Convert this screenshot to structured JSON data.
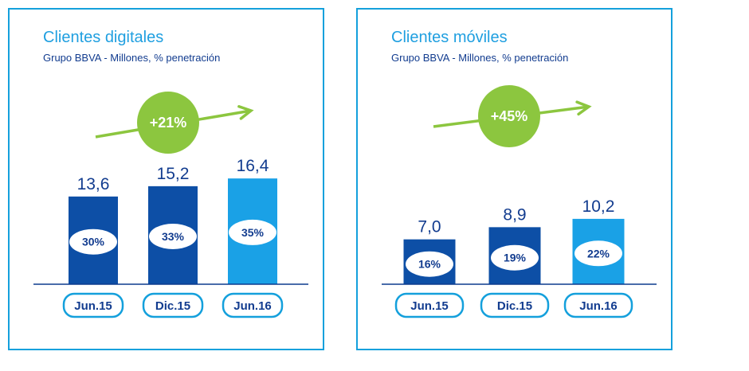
{
  "chart_data": [
    {
      "type": "bar",
      "title": "Clientes digitales",
      "subtitle": "Grupo BBVA - Millones, % penetración",
      "categories": [
        "Jun.15",
        "Dic.15",
        "Jun.16"
      ],
      "values": [
        13.6,
        15.2,
        16.4
      ],
      "value_labels": [
        "13,6",
        "15,2",
        "16,4"
      ],
      "penetration_labels": [
        "30%",
        "33%",
        "35%"
      ],
      "growth_label": "+21%",
      "ylim": [
        0,
        20
      ],
      "colors": [
        "#0d4fa6",
        "#0d4fa6",
        "#1aa1e6"
      ]
    },
    {
      "type": "bar",
      "title": "Clientes móviles",
      "subtitle": "Grupo BBVA - Millones, % penetración",
      "categories": [
        "Jun.15",
        "Dic.15",
        "Jun.16"
      ],
      "values": [
        7.0,
        8.9,
        10.2
      ],
      "value_labels": [
        "7,0",
        "8,9",
        "10,2"
      ],
      "penetration_labels": [
        "16%",
        "19%",
        "22%"
      ],
      "growth_label": "+45%",
      "ylim": [
        0,
        20
      ],
      "colors": [
        "#0d4fa6",
        "#0d4fa6",
        "#1aa1e6"
      ]
    }
  ],
  "colors": {
    "frame": "#14a0dc",
    "title": "#1f9fe0",
    "subtitle": "#123c8f",
    "growth": "#8cc63f",
    "baseline": "#0d3b8e"
  }
}
